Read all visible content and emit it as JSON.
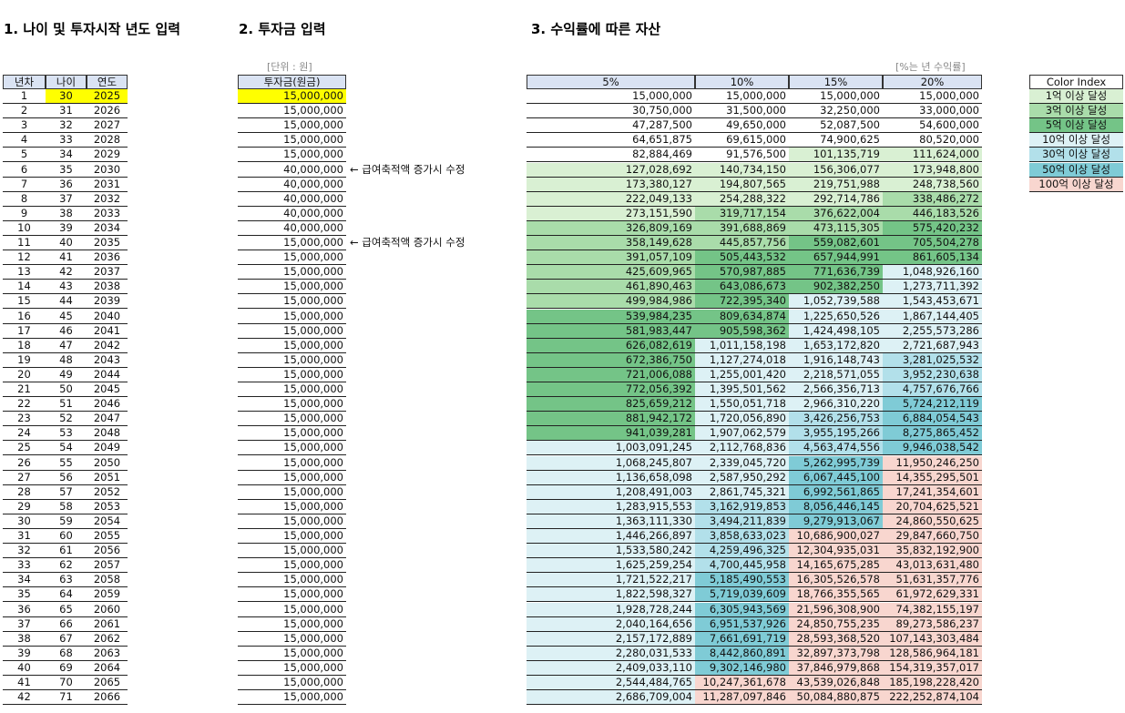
{
  "titles": [
    "1. 나이 및 투자시작 년도 입력",
    "2. 투자금 입력",
    "3. 수익률에 따른 자산"
  ],
  "unit_note": "[단위 : 원]",
  "rate_note": "[%는 년 수익률]",
  "notes": [
    {
      "row": 6,
      "text": "← 급여축적액 증가시 수정"
    },
    {
      "row": 11,
      "text": "← 급여축적액 증가시 수정"
    }
  ],
  "table1": {
    "headers": [
      "년차",
      "나이",
      "연도"
    ],
    "rows": [
      [
        1,
        30,
        2025
      ],
      [
        2,
        31,
        2026
      ],
      [
        3,
        32,
        2027
      ],
      [
        4,
        33,
        2028
      ],
      [
        5,
        34,
        2029
      ],
      [
        6,
        35,
        2030
      ],
      [
        7,
        36,
        2031
      ],
      [
        8,
        37,
        2032
      ],
      [
        9,
        38,
        2033
      ],
      [
        10,
        39,
        2034
      ],
      [
        11,
        40,
        2035
      ],
      [
        12,
        41,
        2036
      ],
      [
        13,
        42,
        2037
      ],
      [
        14,
        43,
        2038
      ],
      [
        15,
        44,
        2039
      ],
      [
        16,
        45,
        2040
      ],
      [
        17,
        46,
        2041
      ],
      [
        18,
        47,
        2042
      ],
      [
        19,
        48,
        2043
      ],
      [
        20,
        49,
        2044
      ],
      [
        21,
        50,
        2045
      ],
      [
        22,
        51,
        2046
      ],
      [
        23,
        52,
        2047
      ],
      [
        24,
        53,
        2048
      ],
      [
        25,
        54,
        2049
      ],
      [
        26,
        55,
        2050
      ],
      [
        27,
        56,
        2051
      ],
      [
        28,
        57,
        2052
      ],
      [
        29,
        58,
        2053
      ],
      [
        30,
        59,
        2054
      ],
      [
        31,
        60,
        2055
      ],
      [
        32,
        61,
        2056
      ],
      [
        33,
        62,
        2057
      ],
      [
        34,
        63,
        2058
      ],
      [
        35,
        64,
        2059
      ],
      [
        36,
        65,
        2060
      ],
      [
        37,
        66,
        2061
      ],
      [
        38,
        67,
        2062
      ],
      [
        39,
        68,
        2063
      ],
      [
        40,
        69,
        2064
      ],
      [
        41,
        70,
        2065
      ],
      [
        42,
        71,
        2066
      ]
    ]
  },
  "table2": {
    "header": "투자금(원금)",
    "rows": [
      "15,000,000",
      "15,000,000",
      "15,000,000",
      "15,000,000",
      "15,000,000",
      "40,000,000",
      "40,000,000",
      "40,000,000",
      "40,000,000",
      "40,000,000",
      "15,000,000",
      "15,000,000",
      "15,000,000",
      "15,000,000",
      "15,000,000",
      "15,000,000",
      "15,000,000",
      "15,000,000",
      "15,000,000",
      "15,000,000",
      "15,000,000",
      "15,000,000",
      "15,000,000",
      "15,000,000",
      "15,000,000",
      "15,000,000",
      "15,000,000",
      "15,000,000",
      "15,000,000",
      "15,000,000",
      "15,000,000",
      "15,000,000",
      "15,000,000",
      "15,000,000",
      "15,000,000",
      "15,000,000",
      "15,000,000",
      "15,000,000",
      "15,000,000",
      "15,000,000",
      "15,000,000",
      "15,000,000"
    ]
  },
  "table3": {
    "headers": [
      "5%",
      "10%",
      "15%",
      "20%"
    ],
    "rows": [
      [
        "15,000,000",
        "15,000,000",
        "15,000,000",
        "15,000,000"
      ],
      [
        "30,750,000",
        "31,500,000",
        "32,250,000",
        "33,000,000"
      ],
      [
        "47,287,500",
        "49,650,000",
        "52,087,500",
        "54,600,000"
      ],
      [
        "64,651,875",
        "69,615,000",
        "74,900,625",
        "80,520,000"
      ],
      [
        "82,884,469",
        "91,576,500",
        "101,135,719",
        "111,624,000"
      ],
      [
        "127,028,692",
        "140,734,150",
        "156,306,077",
        "173,948,800"
      ],
      [
        "173,380,127",
        "194,807,565",
        "219,751,988",
        "248,738,560"
      ],
      [
        "222,049,133",
        "254,288,322",
        "292,714,786",
        "338,486,272"
      ],
      [
        "273,151,590",
        "319,717,154",
        "376,622,004",
        "446,183,526"
      ],
      [
        "326,809,169",
        "391,688,869",
        "473,115,305",
        "575,420,232"
      ],
      [
        "358,149,628",
        "445,857,756",
        "559,082,601",
        "705,504,278"
      ],
      [
        "391,057,109",
        "505,443,532",
        "657,944,991",
        "861,605,134"
      ],
      [
        "425,609,965",
        "570,987,885",
        "771,636,739",
        "1,048,926,160"
      ],
      [
        "461,890,463",
        "643,086,673",
        "902,382,250",
        "1,273,711,392"
      ],
      [
        "499,984,986",
        "722,395,340",
        "1,052,739,588",
        "1,543,453,671"
      ],
      [
        "539,984,235",
        "809,634,874",
        "1,225,650,526",
        "1,867,144,405"
      ],
      [
        "581,983,447",
        "905,598,362",
        "1,424,498,105",
        "2,255,573,286"
      ],
      [
        "626,082,619",
        "1,011,158,198",
        "1,653,172,820",
        "2,721,687,943"
      ],
      [
        "672,386,750",
        "1,127,274,018",
        "1,916,148,743",
        "3,281,025,532"
      ],
      [
        "721,006,088",
        "1,255,001,420",
        "2,218,571,055",
        "3,952,230,638"
      ],
      [
        "772,056,392",
        "1,395,501,562",
        "2,566,356,713",
        "4,757,676,766"
      ],
      [
        "825,659,212",
        "1,550,051,718",
        "2,966,310,220",
        "5,724,212,119"
      ],
      [
        "881,942,172",
        "1,720,056,890",
        "3,426,256,753",
        "6,884,054,543"
      ],
      [
        "941,039,281",
        "1,907,062,579",
        "3,955,195,266",
        "8,275,865,452"
      ],
      [
        "1,003,091,245",
        "2,112,768,836",
        "4,563,474,556",
        "9,946,038,542"
      ],
      [
        "1,068,245,807",
        "2,339,045,720",
        "5,262,995,739",
        "11,950,246,250"
      ],
      [
        "1,136,658,098",
        "2,587,950,292",
        "6,067,445,100",
        "14,355,295,501"
      ],
      [
        "1,208,491,003",
        "2,861,745,321",
        "6,992,561,865",
        "17,241,354,601"
      ],
      [
        "1,283,915,553",
        "3,162,919,853",
        "8,056,446,145",
        "20,704,625,521"
      ],
      [
        "1,363,111,330",
        "3,494,211,839",
        "9,279,913,067",
        "24,860,550,625"
      ],
      [
        "1,446,266,897",
        "3,858,633,023",
        "10,686,900,027",
        "29,847,660,750"
      ],
      [
        "1,533,580,242",
        "4,259,496,325",
        "12,304,935,031",
        "35,832,192,900"
      ],
      [
        "1,625,259,254",
        "4,700,445,958",
        "14,165,675,285",
        "43,013,631,480"
      ],
      [
        "1,721,522,217",
        "5,185,490,553",
        "16,305,526,578",
        "51,631,357,776"
      ],
      [
        "1,822,598,327",
        "5,719,039,609",
        "18,766,355,565",
        "61,972,629,331"
      ],
      [
        "1,928,728,244",
        "6,305,943,569",
        "21,596,308,900",
        "74,382,155,197"
      ],
      [
        "2,040,164,656",
        "6,951,537,926",
        "24,850,755,235",
        "89,273,586,237"
      ],
      [
        "2,157,172,889",
        "7,661,691,719",
        "28,593,368,520",
        "107,143,303,484"
      ],
      [
        "2,280,031,533",
        "8,442,860,891",
        "32,897,373,798",
        "128,586,964,181"
      ],
      [
        "2,409,033,110",
        "9,302,146,980",
        "37,846,979,868",
        "154,319,357,017"
      ],
      [
        "2,544,484,765",
        "10,247,361,678",
        "43,539,026,848",
        "185,198,228,420"
      ],
      [
        "2,686,709,004",
        "11,287,097,846",
        "50,084,880,875",
        "222,252,874,104"
      ]
    ]
  },
  "color_index": {
    "title": "Color Index",
    "items": [
      {
        "label": "1억 이상 달성",
        "color": "#d9f0d3"
      },
      {
        "label": "3억 이상 달성",
        "color": "#a9dcaa"
      },
      {
        "label": "5억 이상 달성",
        "color": "#74c487"
      },
      {
        "label": "10억 이상 달성",
        "color": "#ddf1f5"
      },
      {
        "label": "30억 이상 달성",
        "color": "#b2e0ea"
      },
      {
        "label": "50억 이상 달성",
        "color": "#7fcbd6"
      },
      {
        "label": "100억 이상 달성",
        "color": "#f8d6cf"
      }
    ]
  }
}
